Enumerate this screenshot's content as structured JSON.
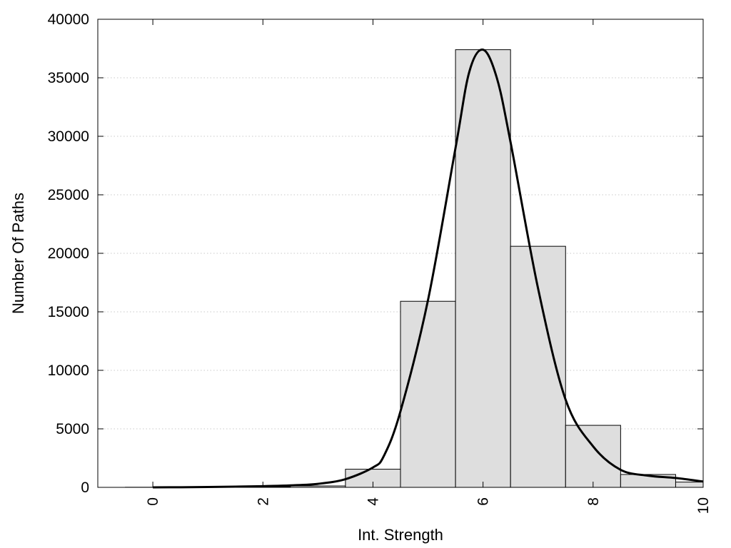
{
  "chart_data": {
    "type": "bar",
    "title": "",
    "xlabel": "Int. Strength",
    "ylabel": "Number Of Paths",
    "xlim": [
      -1,
      10
    ],
    "ylim": [
      0,
      40000
    ],
    "xticks": [
      "0",
      "2",
      "4",
      "6",
      "8",
      "10"
    ],
    "yticks": [
      "0",
      "5000",
      "10000",
      "15000",
      "20000",
      "25000",
      "30000",
      "35000",
      "40000"
    ],
    "grid": "horizontal dotted",
    "legend": "none",
    "bin_width": 1,
    "bars": [
      {
        "x": 0,
        "value": 10
      },
      {
        "x": 1,
        "value": 20
      },
      {
        "x": 2,
        "value": 50
      },
      {
        "x": 3,
        "value": 120
      },
      {
        "x": 4,
        "value": 1550
      },
      {
        "x": 5,
        "value": 15900
      },
      {
        "x": 6,
        "value": 37400
      },
      {
        "x": 7,
        "value": 20600
      },
      {
        "x": 8,
        "value": 5300
      },
      {
        "x": 9,
        "value": 1100
      },
      {
        "x": 10,
        "value": 450
      }
    ],
    "curve": {
      "x": [
        0,
        0.5,
        1,
        1.5,
        2,
        2.5,
        3,
        3.5,
        4,
        4.2,
        4.5,
        5,
        5.5,
        5.75,
        6,
        6.25,
        6.5,
        7,
        7.5,
        8,
        8.5,
        9,
        9.5,
        10
      ],
      "y": [
        0,
        10,
        30,
        60,
        100,
        170,
        300,
        700,
        1700,
        2700,
        6500,
        16000,
        29000,
        35500,
        37400,
        35000,
        29500,
        17000,
        7500,
        3500,
        1500,
        1000,
        800,
        500
      ]
    },
    "colors": {
      "bar_fill": "#dedede",
      "bar_stroke": "#000000",
      "curve": "#000000",
      "grid": "#c8c8c8"
    }
  }
}
